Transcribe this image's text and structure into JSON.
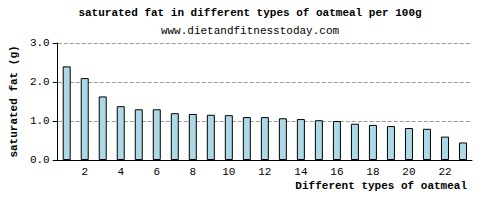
{
  "chart_data": {
    "type": "bar",
    "title": "saturated fat in different types of oatmeal per 100g",
    "subtitle": "www.dietandfitnesstoday.com",
    "xlabel": "Different types of oatmeal",
    "ylabel": "saturated fat (g)",
    "categories": [
      null,
      "2",
      null,
      "4",
      null,
      "6",
      null,
      "8",
      null,
      "10",
      null,
      "12",
      null,
      "14",
      null,
      "16",
      null,
      "18",
      null,
      "20",
      null,
      "22",
      null
    ],
    "values": [
      2.4,
      2.1,
      1.63,
      1.38,
      1.3,
      1.3,
      1.2,
      1.18,
      1.16,
      1.15,
      1.1,
      1.1,
      1.07,
      1.05,
      1.02,
      1.0,
      0.93,
      0.9,
      0.87,
      0.82,
      0.8,
      0.6,
      0.45
    ],
    "color": "#add8e6",
    "ylim": [
      0,
      3
    ],
    "yticks": [
      {
        "value": 0,
        "label": "0.0"
      },
      {
        "value": 1,
        "label": "1.0"
      },
      {
        "value": 2,
        "label": "2.0"
      },
      {
        "value": 3,
        "label": "3.0"
      }
    ],
    "grid": true
  }
}
